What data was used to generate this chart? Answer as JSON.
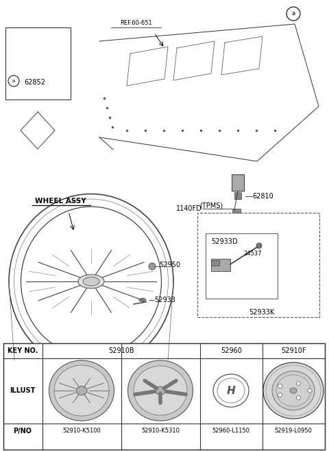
{
  "background_color": "#ffffff",
  "labels": {
    "ref": "REF.60-651",
    "part_a": "a",
    "part_62852": "62852",
    "part_1140fd": "1140FD",
    "part_62810": "62810",
    "wheel_assy": "WHEEL ASSY",
    "part_52950": "52950",
    "part_52933": "52933",
    "tpms": "(TPMS)",
    "part_52933k": "52933K",
    "part_24537": "24537",
    "part_52933d": "52933D"
  },
  "table_key_no": [
    "KEY NO.",
    "52910B",
    "52960",
    "52910F"
  ],
  "table_pno": [
    "P/NO",
    "52910-K5100",
    "52910-K5310",
    "52960-L1150",
    "52919-L0950"
  ],
  "table_illust": "ILLUST"
}
